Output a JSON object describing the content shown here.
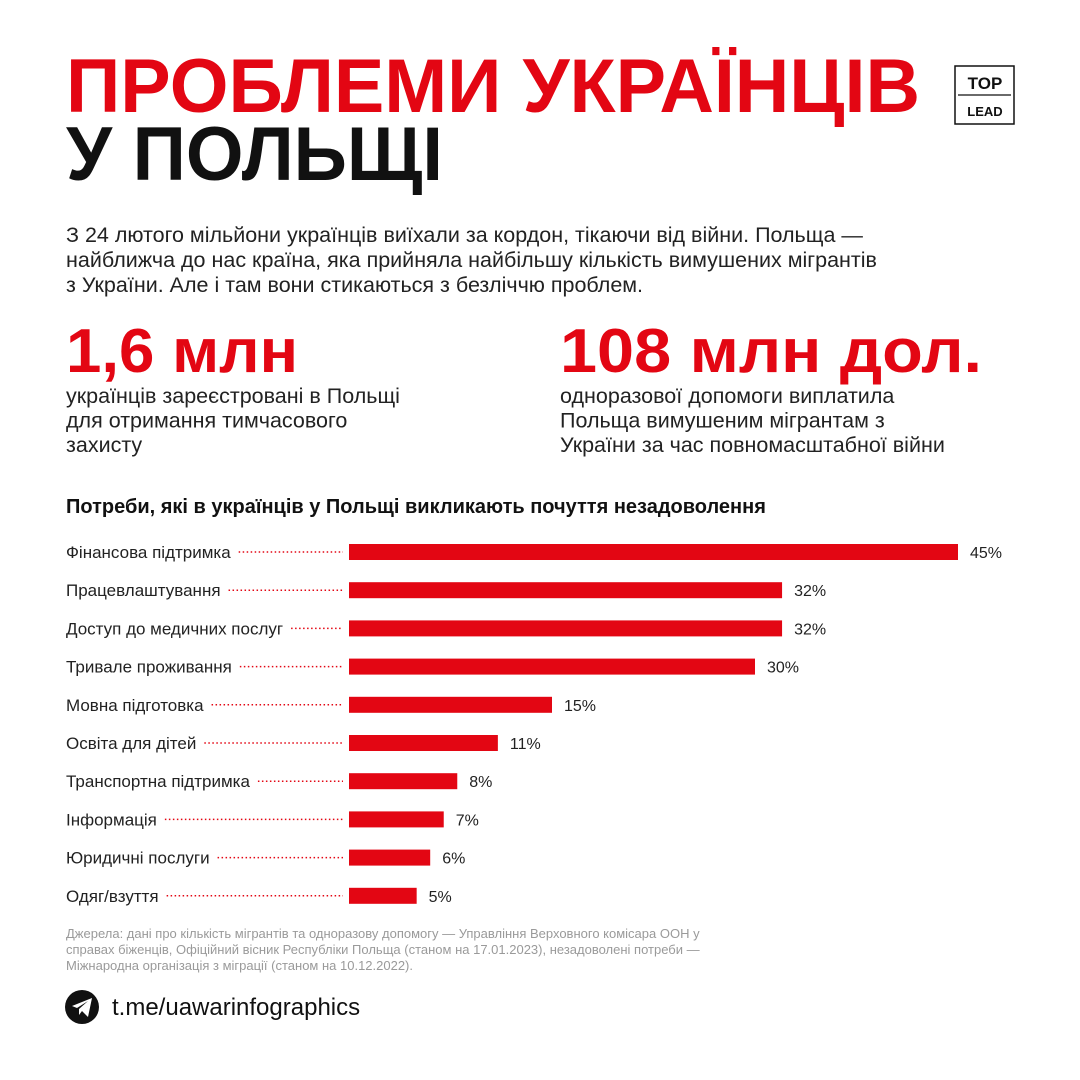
{
  "header": {
    "title_lines": [
      "ПРОБЛЕМИ УКРАЇНЦІВ",
      "У ПОЛЬЩІ"
    ],
    "logo": [
      "TOP",
      "LEAD"
    ]
  },
  "intro_lines": [
    "З 24 лютого мільйони українців виїхали за кордон, тікаючи від війни. Польща —",
    "найближча до нас країна, яка прийняла найбільшу кількість вимушених мігрантів",
    "з України. Але і там вони стикаються з безліччю проблем."
  ],
  "stats": [
    {
      "value": "1,6 млн",
      "lines": [
        "українців зареєстровані в Польщі",
        "для отримання тимчасового",
        "захисту"
      ]
    },
    {
      "value": "108 млн дол.",
      "lines": [
        "одноразової допомоги виплатила",
        "Польща вимушеним мігрантам з",
        "України за час повномасштабної війни"
      ]
    }
  ],
  "chart_data": {
    "type": "bar",
    "orientation": "horizontal",
    "title": "Потреби, які в українців у Польщі викликають почуття незадоволення",
    "categories": [
      "Фінансова підтримка",
      "Працевлаштування",
      "Доступ до медичних послуг",
      "Тривале проживання",
      "Мовна підготовка",
      "Освіта для дітей",
      "Транспортна підтримка",
      "Інформація",
      "Юридичні послуги",
      "Одяг/взуття"
    ],
    "values": [
      45,
      32,
      32,
      30,
      15,
      11,
      8,
      7,
      6,
      5
    ],
    "value_labels": [
      "45%",
      "32%",
      "32%",
      "30%",
      "15%",
      "11%",
      "8%",
      "7%",
      "6%",
      "5%"
    ],
    "color": "#e30613",
    "xlim": [
      0,
      45
    ]
  },
  "source_lines": [
    "Джерела: дані про кількість мігрантів та одноразову допомогу — Управління Верховного комісара ООН у",
    "справах біженців, Офіційний вісник Республіки Польща (станом на 17.01.2023), незадоволені потреби —",
    "Міжнародна організація з міграції (станом на 10.12.2022)."
  ],
  "footer": {
    "link": "t.me/uawarinfographics"
  }
}
